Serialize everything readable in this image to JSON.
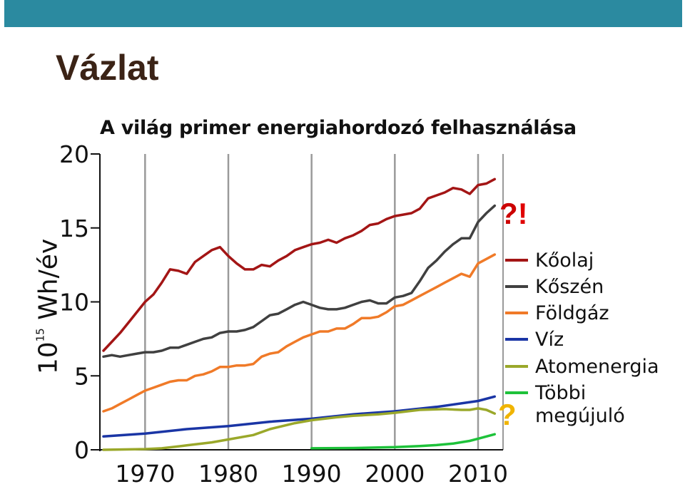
{
  "slide": {
    "title": "Vázlat",
    "annotations": {
      "interrobang": "?!",
      "question": "?"
    },
    "colors": {
      "topbar": "#2b8aa0",
      "title": "#3b2316",
      "interrobang_q": "#cc0000",
      "interrobang_ex": "#e00000",
      "question": "#f0b400"
    }
  },
  "chart_data": {
    "type": "line",
    "title": "A világ primer energiahordozó felhasználása",
    "ylabel_base": "10",
    "ylabel_exp": "15",
    "ylabel_unit": " Wh/év",
    "xlim": [
      1965,
      2013
    ],
    "ylim": [
      0,
      20
    ],
    "xticks": [
      1970,
      1980,
      1990,
      2000,
      2010
    ],
    "yticks": [
      0,
      5,
      10,
      15,
      20
    ],
    "grid": "vertical",
    "legend": "right",
    "series": [
      {
        "name": "Kőolaj",
        "color": "#a31515",
        "x": [
          1965,
          1966,
          1967,
          1968,
          1969,
          1970,
          1971,
          1972,
          1973,
          1974,
          1975,
          1976,
          1977,
          1978,
          1979,
          1980,
          1981,
          1982,
          1983,
          1984,
          1985,
          1986,
          1987,
          1988,
          1989,
          1990,
          1991,
          1992,
          1993,
          1994,
          1995,
          1996,
          1997,
          1998,
          1999,
          2000,
          2001,
          2002,
          2003,
          2004,
          2005,
          2006,
          2007,
          2008,
          2009,
          2010,
          2011,
          2012
        ],
        "y": [
          6.7,
          7.3,
          7.9,
          8.6,
          9.3,
          10.0,
          10.5,
          11.3,
          12.2,
          12.1,
          11.9,
          12.7,
          13.1,
          13.5,
          13.7,
          13.1,
          12.6,
          12.2,
          12.2,
          12.5,
          12.4,
          12.8,
          13.1,
          13.5,
          13.7,
          13.9,
          14.0,
          14.2,
          14.0,
          14.3,
          14.5,
          14.8,
          15.2,
          15.3,
          15.6,
          15.8,
          15.9,
          16.0,
          16.3,
          17.0,
          17.2,
          17.4,
          17.7,
          17.6,
          17.3,
          17.9,
          18.0,
          18.3
        ]
      },
      {
        "name": "Kőszén",
        "color": "#404040",
        "x": [
          1965,
          1966,
          1967,
          1968,
          1969,
          1970,
          1971,
          1972,
          1973,
          1974,
          1975,
          1976,
          1977,
          1978,
          1979,
          1980,
          1981,
          1982,
          1983,
          1984,
          1985,
          1986,
          1987,
          1988,
          1989,
          1990,
          1991,
          1992,
          1993,
          1994,
          1995,
          1996,
          1997,
          1998,
          1999,
          2000,
          2001,
          2002,
          2003,
          2004,
          2005,
          2006,
          2007,
          2008,
          2009,
          2010,
          2011,
          2012
        ],
        "y": [
          6.3,
          6.4,
          6.3,
          6.4,
          6.5,
          6.6,
          6.6,
          6.7,
          6.9,
          6.9,
          7.1,
          7.3,
          7.5,
          7.6,
          7.9,
          8.0,
          8.0,
          8.1,
          8.3,
          8.7,
          9.1,
          9.2,
          9.5,
          9.8,
          10.0,
          9.8,
          9.6,
          9.5,
          9.5,
          9.6,
          9.8,
          10.0,
          10.1,
          9.9,
          9.9,
          10.3,
          10.4,
          10.6,
          11.4,
          12.3,
          12.8,
          13.4,
          13.9,
          14.3,
          14.3,
          15.4,
          16.0,
          16.5
        ]
      },
      {
        "name": "Földgáz",
        "color": "#f07a28",
        "x": [
          1965,
          1966,
          1967,
          1968,
          1969,
          1970,
          1971,
          1972,
          1973,
          1974,
          1975,
          1976,
          1977,
          1978,
          1979,
          1980,
          1981,
          1982,
          1983,
          1984,
          1985,
          1986,
          1987,
          1988,
          1989,
          1990,
          1991,
          1992,
          1993,
          1994,
          1995,
          1996,
          1997,
          1998,
          1999,
          2000,
          2001,
          2002,
          2003,
          2004,
          2005,
          2006,
          2007,
          2008,
          2009,
          2010,
          2011,
          2012
        ],
        "y": [
          2.6,
          2.8,
          3.1,
          3.4,
          3.7,
          4.0,
          4.2,
          4.4,
          4.6,
          4.7,
          4.7,
          5.0,
          5.1,
          5.3,
          5.6,
          5.6,
          5.7,
          5.7,
          5.8,
          6.3,
          6.5,
          6.6,
          7.0,
          7.3,
          7.6,
          7.8,
          8.0,
          8.0,
          8.2,
          8.2,
          8.5,
          8.9,
          8.9,
          9.0,
          9.3,
          9.7,
          9.8,
          10.1,
          10.4,
          10.7,
          11.0,
          11.3,
          11.6,
          11.9,
          11.7,
          12.6,
          12.9,
          13.2
        ]
      },
      {
        "name": "Víz",
        "color": "#1a35a5",
        "x": [
          1965,
          1970,
          1975,
          1980,
          1985,
          1990,
          1995,
          2000,
          2005,
          2010,
          2012
        ],
        "y": [
          0.9,
          1.1,
          1.4,
          1.6,
          1.9,
          2.1,
          2.4,
          2.6,
          2.9,
          3.3,
          3.6
        ]
      },
      {
        "name": "Atomenergia",
        "color": "#9aa82a",
        "x": [
          1965,
          1970,
          1972,
          1975,
          1978,
          1980,
          1983,
          1985,
          1988,
          1990,
          1993,
          1995,
          1998,
          2000,
          2003,
          2006,
          2008,
          2009,
          2010,
          2011,
          2012
        ],
        "y": [
          0.0,
          0.05,
          0.1,
          0.3,
          0.5,
          0.7,
          1.0,
          1.4,
          1.8,
          2.0,
          2.2,
          2.3,
          2.4,
          2.5,
          2.7,
          2.75,
          2.7,
          2.7,
          2.8,
          2.7,
          2.45
        ]
      },
      {
        "name": "Többi megújuló",
        "name_line1": "Többi",
        "name_line2": "megújuló",
        "color": "#1ec23a",
        "x": [
          1990,
          1995,
          2000,
          2003,
          2005,
          2007,
          2009,
          2010,
          2011,
          2012
        ],
        "y": [
          0.1,
          0.12,
          0.18,
          0.25,
          0.32,
          0.42,
          0.6,
          0.75,
          0.9,
          1.05
        ]
      }
    ]
  }
}
